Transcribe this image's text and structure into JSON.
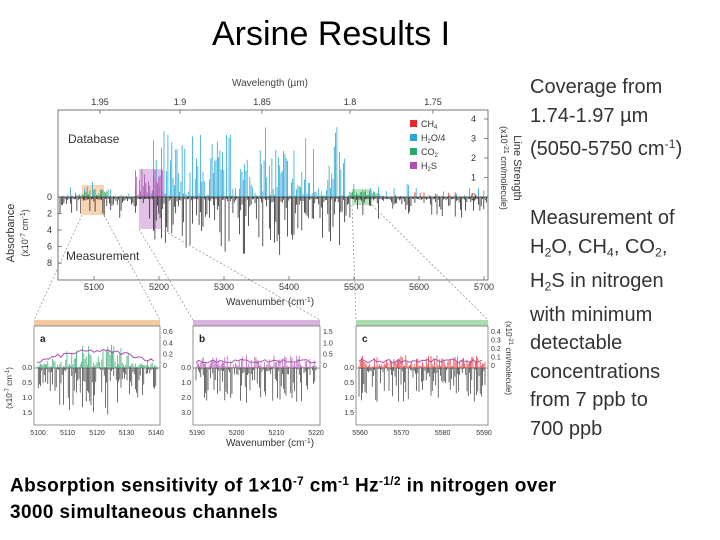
{
  "slide": {
    "title": "Arsine Results I",
    "coverage": {
      "line1": "Coverage from",
      "line2": "1.74-1.97 µm",
      "line3_pre": "(5050-5750 cm",
      "line3_sup": "-1",
      "line3_post": ")"
    },
    "measurement": {
      "p1": "Measurement of",
      "h": "H",
      "two": "2",
      "o": "O, CH",
      "four": "4",
      "co": ", CO",
      "two_b": "2",
      "comma": ",",
      "h2s_h": "H",
      "h2s_2": "2",
      "h2s_s": "S in nitrogen",
      "p4": "with minimum",
      "p5": "detectable",
      "p6": "concentrations",
      "p7": "from 7 ppb to",
      "p8": "700 ppb"
    },
    "footer": {
      "t1": "Absorption sensitivity of 1",
      "times": "×",
      "t2": "10",
      "s1": "-7",
      "t3": " cm",
      "s2": "-1",
      "t4": " Hz",
      "s3": "-1/2",
      "t5": " in nitrogen over",
      "t6": "3000 simultaneous channels"
    }
  },
  "figure": {
    "wavelength_label": "Wavelength  (µm)",
    "wavelength_ticks": [
      "1.95",
      "1.9",
      "1.85",
      "1.8",
      "1.75"
    ],
    "database_label": "Database",
    "measurement_label": "Measurement",
    "absorbance_label": "Absorbance",
    "absorbance_unit": "(x10",
    "absorbance_unit_sup": "-7",
    "absorbance_unit_post": " cm",
    "absorbance_unit_sup2": "-1",
    "absorbance_unit_end": ")",
    "absorbance_ticks": [
      "0",
      "2",
      "4",
      "6",
      "8"
    ],
    "line_strength_label": "Line Strength",
    "line_strength_unit": "(x10",
    "line_strength_sup": "-21",
    "line_strength_post": " cm/molecule)",
    "line_strength_ticks": [
      "0",
      "1",
      "2",
      "3",
      "4"
    ],
    "wavenumber_label": "Wavenumber (cm",
    "wavenumber_sup": "-1",
    "wavenumber_end": ")",
    "wavenumber_ticks": [
      "5100",
      "5200",
      "5300",
      "5400",
      "5500",
      "5600",
      "5700"
    ],
    "legend": [
      {
        "label": "CH",
        "sub": "4",
        "post": "",
        "color": "#e8262b"
      },
      {
        "label": "H",
        "sub": "2",
        "post": "O/4",
        "color": "#2aa7d6"
      },
      {
        "label": "CO",
        "sub": "2",
        "post": "",
        "color": "#29a86b"
      },
      {
        "label": "H",
        "sub": "2",
        "post": "S",
        "color": "#b04fb0"
      }
    ],
    "panel_a": {
      "letter": "a",
      "ticks_x": [
        "5100",
        "5110",
        "5120",
        "5130",
        "5140"
      ],
      "ticks_right": [
        "0.6",
        "0.4",
        "0.2",
        "0"
      ],
      "ticks_left": [
        "0.0",
        "0.5",
        "1.0",
        "1.5"
      ],
      "band_color": "#f5c9a0"
    },
    "panel_b": {
      "letter": "b",
      "ticks_x": [
        "5190",
        "5200",
        "5210",
        "5220"
      ],
      "ticks_right": [
        "1.5",
        "1.0",
        "0.5",
        "0"
      ],
      "ticks_left": [
        "0.0",
        "1.0",
        "2.0",
        "3.0"
      ],
      "band_color": "#d9b3e0"
    },
    "panel_c": {
      "letter": "c",
      "ticks_x": [
        "5560",
        "5570",
        "5580",
        "5590"
      ],
      "ticks_right": [
        "0.4",
        "0.3",
        "0.2",
        "0.1",
        "0"
      ],
      "ticks_left": [
        "0.0",
        "0.5",
        "1.0",
        "1.5"
      ],
      "band_color": "#a9ddb0"
    },
    "inset_unit_left": "(x10",
    "inset_unit_left_sup": "-7",
    "inset_unit_left_post": " cm",
    "inset_unit_left_sup2": "-1",
    "inset_unit_left_end": ")",
    "inset_unit_right": "(x10",
    "inset_unit_right_sup": "-21",
    "inset_unit_right_post": " cm/molecule)",
    "colors": {
      "measurement": "#111111",
      "h2o": "#2aa7d6",
      "co2": "#29a86b",
      "h2s": "#b04fb0",
      "ch4": "#e8262b"
    }
  }
}
